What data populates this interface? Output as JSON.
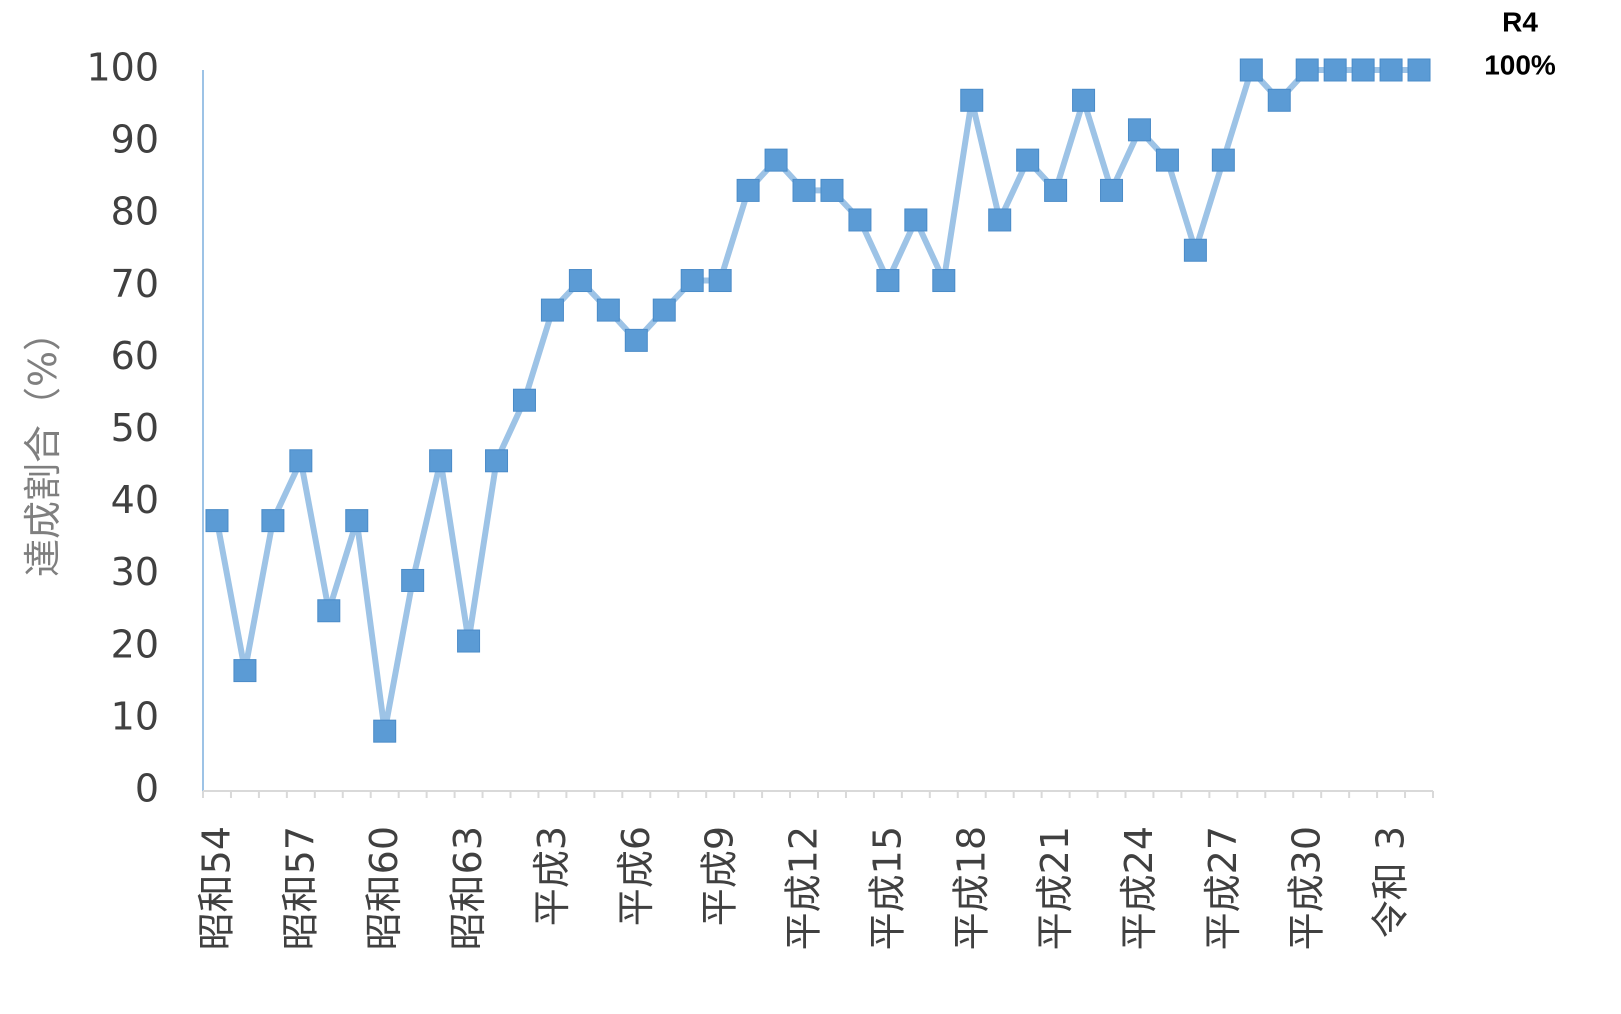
{
  "chart_data": {
    "type": "line",
    "y_label": "達成割合（%）",
    "annotations": [
      "R4",
      "100%"
    ],
    "categories": [
      "昭和54",
      null,
      null,
      "昭和57",
      null,
      null,
      "昭和60",
      null,
      null,
      "昭和63",
      null,
      null,
      "平成3",
      null,
      null,
      "平成6",
      null,
      null,
      "平成9",
      null,
      null,
      "平成12",
      null,
      null,
      "平成15",
      null,
      null,
      "平成18",
      null,
      null,
      "平成21",
      null,
      null,
      "平成24",
      null,
      null,
      "平成27",
      null,
      null,
      "平成30",
      null,
      null,
      "令和 3",
      null
    ],
    "series": [
      {
        "color": "#5b9bd5",
        "line_color": "#9dc3e6",
        "values": [
          37.5,
          16.7,
          37.5,
          45.8,
          25,
          37.5,
          8.3,
          29.2,
          45.8,
          20.8,
          45.8,
          54.2,
          66.7,
          70.8,
          66.7,
          62.5,
          66.7,
          70.8,
          70.8,
          83.3,
          87.5,
          83.3,
          83.3,
          79.2,
          70.8,
          79.2,
          70.8,
          95.8,
          79.2,
          87.5,
          83.3,
          95.8,
          83.3,
          91.7,
          87.5,
          75,
          87.5,
          100,
          95.8,
          100,
          100,
          100,
          100,
          100
        ]
      }
    ],
    "ylim": [
      0,
      100
    ],
    "yticks": [
      0,
      10,
      20,
      30,
      40,
      50,
      60,
      70,
      80,
      90,
      100
    ],
    "grid": false
  }
}
